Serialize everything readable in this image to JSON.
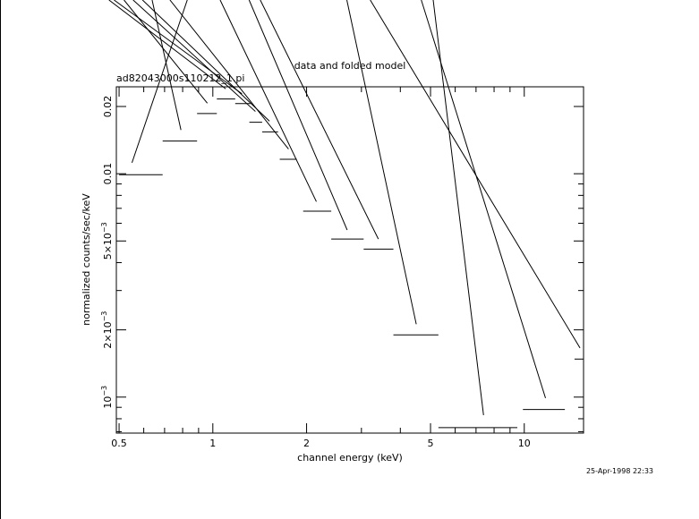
{
  "chart_data": {
    "type": "scatter",
    "title": "data and folded model",
    "subtitle": "ad82043000s110212_1.pi",
    "xlabel": "channel energy (keV)",
    "ylabel": "normalized counts/sec/keV",
    "timestamp": "25-Apr-1998 22:33",
    "xscale": "log",
    "yscale": "log",
    "xlim": [
      0.49,
      15.5
    ],
    "ylim": [
      0.00069,
      0.0245
    ],
    "x_ticks": [
      {
        "value": 0.5,
        "label": "0.5"
      },
      {
        "value": 1,
        "label": "1"
      },
      {
        "value": 2,
        "label": "2"
      },
      {
        "value": 5,
        "label": "5"
      },
      {
        "value": 10,
        "label": "10"
      }
    ],
    "y_ticks": [
      {
        "value": 0.001,
        "label": "10",
        "sup": "−3"
      },
      {
        "value": 0.002,
        "label": "2×10",
        "sup": "−3"
      },
      {
        "value": 0.005,
        "label": "5×10",
        "sup": "−3"
      },
      {
        "value": 0.01,
        "label": "0.01",
        "sup": ""
      },
      {
        "value": 0.02,
        "label": "0.02",
        "sup": ""
      }
    ],
    "series": [
      {
        "points": [
          {
            "x": 0.55,
            "xlo": 0.5,
            "xhi": 0.69,
            "y": 0.0099,
            "ylo": 0.0087,
            "yhi": 0.0112
          },
          {
            "x": 0.79,
            "xlo": 0.69,
            "xhi": 0.89,
            "y": 0.014,
            "ylo": 0.0125,
            "yhi": 0.0157
          },
          {
            "x": 0.96,
            "xlo": 0.89,
            "xhi": 1.03,
            "y": 0.0186,
            "ylo": 0.0167,
            "yhi": 0.0207
          },
          {
            "x": 1.1,
            "xlo": 1.03,
            "xhi": 1.18,
            "y": 0.0216,
            "ylo": 0.0195,
            "yhi": 0.024
          },
          {
            "x": 1.24,
            "xlo": 1.18,
            "xhi": 1.32,
            "y": 0.0206,
            "ylo": 0.0185,
            "yhi": 0.0228
          },
          {
            "x": 1.37,
            "xlo": 1.31,
            "xhi": 1.44,
            "y": 0.017,
            "ylo": 0.0152,
            "yhi": 0.019
          },
          {
            "x": 1.52,
            "xlo": 1.44,
            "xhi": 1.62,
            "y": 0.0154,
            "ylo": 0.0138,
            "yhi": 0.0172
          },
          {
            "x": 1.75,
            "xlo": 1.64,
            "xhi": 1.86,
            "y": 0.0116,
            "ylo": 0.0104,
            "yhi": 0.0129
          },
          {
            "x": 2.15,
            "xlo": 1.95,
            "xhi": 2.4,
            "y": 0.0068,
            "ylo": 0.0062,
            "yhi": 0.0075
          },
          {
            "x": 2.7,
            "xlo": 2.4,
            "xhi": 3.05,
            "y": 0.0051,
            "ylo": 0.0046,
            "yhi": 0.0056
          },
          {
            "x": 3.4,
            "xlo": 3.05,
            "xhi": 3.8,
            "y": 0.0046,
            "ylo": 0.0041,
            "yhi": 0.0051
          },
          {
            "x": 4.5,
            "xlo": 3.8,
            "xhi": 5.3,
            "y": 0.0019,
            "ylo": 0.00168,
            "yhi": 0.00212
          },
          {
            "x": 7.4,
            "xlo": 5.3,
            "xhi": 9.5,
            "y": 0.00073,
            "ylo": 0.00065,
            "yhi": 0.00083
          },
          {
            "x": 11.7,
            "xlo": 9.9,
            "xhi": 13.5,
            "y": 0.00088,
            "ylo": 0.00078,
            "yhi": 0.00099
          },
          {
            "x": 15.1,
            "xlo": 14.5,
            "xhi": 15.5,
            "y": 0.00148,
            "ylo": 0.00132,
            "yhi": 0.00166
          }
        ]
      }
    ]
  }
}
